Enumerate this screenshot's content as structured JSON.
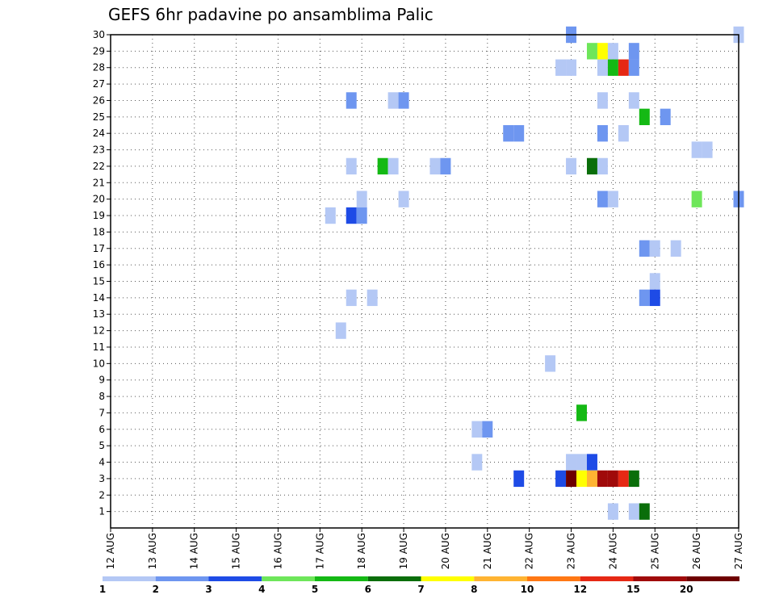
{
  "chart_data": {
    "type": "heatmap",
    "title": "GEFS 6hr padavine po ansamblima Palic",
    "xlabel": "",
    "ylabel": "",
    "x_tick_labels": [
      "12 AUG",
      "13 AUG",
      "14 AUG",
      "15 AUG",
      "16 AUG",
      "17 AUG",
      "18 AUG",
      "19 AUG",
      "20 AUG",
      "21 AUG",
      "22 AUG",
      "23 AUG",
      "24 AUG",
      "25 AUG",
      "26 AUG",
      "27 AUG"
    ],
    "x_range_days": [
      0,
      15
    ],
    "time_step_hours": 6,
    "y_ticks": [
      1,
      2,
      3,
      4,
      5,
      6,
      7,
      8,
      9,
      10,
      11,
      12,
      13,
      14,
      15,
      16,
      17,
      18,
      19,
      20,
      21,
      22,
      23,
      24,
      25,
      26,
      27,
      28,
      29,
      30
    ],
    "grid": "dotted",
    "legend": {
      "position": "bottom",
      "bins": [
        {
          "color": "#b4c8f5"
        },
        {
          "color": "#6e96f0"
        },
        {
          "color": "#1e4be6"
        },
        {
          "color": "#6ee65a"
        },
        {
          "color": "#14b914"
        },
        {
          "color": "#0a6e0a"
        },
        {
          "color": "#ffff00"
        },
        {
          "color": "#ffb432"
        },
        {
          "color": "#ff7814"
        },
        {
          "color": "#e62814"
        },
        {
          "color": "#a00a0a"
        },
        {
          "color": "#6e0000"
        }
      ],
      "labels": [
        {
          "text": "1",
          "at": 0
        },
        {
          "text": "2",
          "at": 1
        },
        {
          "text": "3",
          "at": 2
        },
        {
          "text": "4",
          "at": 3
        },
        {
          "text": "5",
          "at": 4
        },
        {
          "text": "6",
          "at": 5
        },
        {
          "text": "7",
          "at": 6
        },
        {
          "text": "8",
          "at": 7
        },
        {
          "text": "10",
          "at": 8
        },
        {
          "text": "12",
          "at": 9
        },
        {
          "text": "15",
          "at": 10
        },
        {
          "text": "20",
          "at": 11
        }
      ]
    },
    "cells": [
      {
        "member": 30,
        "day": 11.0,
        "color": "#6e96f0"
      },
      {
        "member": 30,
        "day": 15.0,
        "color": "#b4c8f5"
      },
      {
        "member": 29,
        "day": 11.5,
        "color": "#6ee65a"
      },
      {
        "member": 29,
        "day": 11.75,
        "color": "#ffff00"
      },
      {
        "member": 29,
        "day": 12.0,
        "color": "#b4c8f5"
      },
      {
        "member": 29,
        "day": 12.5,
        "color": "#6e96f0"
      },
      {
        "member": 28,
        "day": 10.75,
        "color": "#b4c8f5"
      },
      {
        "member": 28,
        "day": 11.0,
        "color": "#b4c8f5"
      },
      {
        "member": 28,
        "day": 11.75,
        "color": "#b4c8f5"
      },
      {
        "member": 28,
        "day": 12.0,
        "color": "#14b914"
      },
      {
        "member": 28,
        "day": 12.25,
        "color": "#e62814"
      },
      {
        "member": 28,
        "day": 12.5,
        "color": "#6e96f0"
      },
      {
        "member": 26,
        "day": 5.75,
        "color": "#6e96f0"
      },
      {
        "member": 26,
        "day": 6.75,
        "color": "#b4c8f5"
      },
      {
        "member": 26,
        "day": 7.0,
        "color": "#6e96f0"
      },
      {
        "member": 26,
        "day": 11.75,
        "color": "#b4c8f5"
      },
      {
        "member": 26,
        "day": 12.5,
        "color": "#b4c8f5"
      },
      {
        "member": 25,
        "day": 12.75,
        "color": "#14b914"
      },
      {
        "member": 25,
        "day": 13.25,
        "color": "#6e96f0"
      },
      {
        "member": 24,
        "day": 9.5,
        "color": "#6e96f0"
      },
      {
        "member": 24,
        "day": 9.75,
        "color": "#6e96f0"
      },
      {
        "member": 24,
        "day": 11.75,
        "color": "#6e96f0"
      },
      {
        "member": 24,
        "day": 12.25,
        "color": "#b4c8f5"
      },
      {
        "member": 23,
        "day": 14.0,
        "color": "#b4c8f5"
      },
      {
        "member": 23,
        "day": 14.25,
        "color": "#b4c8f5"
      },
      {
        "member": 22,
        "day": 5.75,
        "color": "#b4c8f5"
      },
      {
        "member": 22,
        "day": 6.5,
        "color": "#14b914"
      },
      {
        "member": 22,
        "day": 6.75,
        "color": "#b4c8f5"
      },
      {
        "member": 22,
        "day": 7.75,
        "color": "#b4c8f5"
      },
      {
        "member": 22,
        "day": 8.0,
        "color": "#6e96f0"
      },
      {
        "member": 22,
        "day": 11.0,
        "color": "#b4c8f5"
      },
      {
        "member": 22,
        "day": 11.5,
        "color": "#0a6e0a"
      },
      {
        "member": 22,
        "day": 11.75,
        "color": "#b4c8f5"
      },
      {
        "member": 20,
        "day": 6.0,
        "color": "#b4c8f5"
      },
      {
        "member": 20,
        "day": 7.0,
        "color": "#b4c8f5"
      },
      {
        "member": 20,
        "day": 11.75,
        "color": "#6e96f0"
      },
      {
        "member": 20,
        "day": 12.0,
        "color": "#b4c8f5"
      },
      {
        "member": 20,
        "day": 14.0,
        "color": "#6ee65a"
      },
      {
        "member": 20,
        "day": 15.0,
        "color": "#6e96f0"
      },
      {
        "member": 19,
        "day": 5.25,
        "color": "#b4c8f5"
      },
      {
        "member": 19,
        "day": 5.75,
        "color": "#1e4be6"
      },
      {
        "member": 19,
        "day": 6.0,
        "color": "#6e96f0"
      },
      {
        "member": 17,
        "day": 12.75,
        "color": "#6e96f0"
      },
      {
        "member": 17,
        "day": 13.0,
        "color": "#b4c8f5"
      },
      {
        "member": 17,
        "day": 13.5,
        "color": "#b4c8f5"
      },
      {
        "member": 15,
        "day": 13.0,
        "color": "#b4c8f5"
      },
      {
        "member": 14,
        "day": 5.75,
        "color": "#b4c8f5"
      },
      {
        "member": 14,
        "day": 6.25,
        "color": "#b4c8f5"
      },
      {
        "member": 14,
        "day": 12.75,
        "color": "#6e96f0"
      },
      {
        "member": 14,
        "day": 13.0,
        "color": "#1e4be6"
      },
      {
        "member": 12,
        "day": 5.5,
        "color": "#b4c8f5"
      },
      {
        "member": 10,
        "day": 10.5,
        "color": "#b4c8f5"
      },
      {
        "member": 7,
        "day": 11.25,
        "color": "#14b914"
      },
      {
        "member": 6,
        "day": 8.75,
        "color": "#b4c8f5"
      },
      {
        "member": 6,
        "day": 9.0,
        "color": "#6e96f0"
      },
      {
        "member": 4,
        "day": 8.75,
        "color": "#b4c8f5"
      },
      {
        "member": 4,
        "day": 11.0,
        "color": "#b4c8f5"
      },
      {
        "member": 4,
        "day": 11.25,
        "color": "#b4c8f5"
      },
      {
        "member": 4,
        "day": 11.5,
        "color": "#1e4be6"
      },
      {
        "member": 3,
        "day": 9.75,
        "color": "#1e4be6"
      },
      {
        "member": 3,
        "day": 10.75,
        "color": "#1e4be6"
      },
      {
        "member": 3,
        "day": 11.0,
        "color": "#6e0000"
      },
      {
        "member": 3,
        "day": 11.25,
        "color": "#ffff00"
      },
      {
        "member": 3,
        "day": 11.5,
        "color": "#ffb432"
      },
      {
        "member": 3,
        "day": 11.75,
        "color": "#a00a0a"
      },
      {
        "member": 3,
        "day": 12.0,
        "color": "#a00a0a"
      },
      {
        "member": 3,
        "day": 12.25,
        "color": "#e62814"
      },
      {
        "member": 3,
        "day": 12.5,
        "color": "#0a6e0a"
      },
      {
        "member": 1,
        "day": 12.0,
        "color": "#b4c8f5"
      },
      {
        "member": 1,
        "day": 12.5,
        "color": "#b4c8f5"
      },
      {
        "member": 1,
        "day": 12.75,
        "color": "#0a6e0a"
      }
    ]
  }
}
